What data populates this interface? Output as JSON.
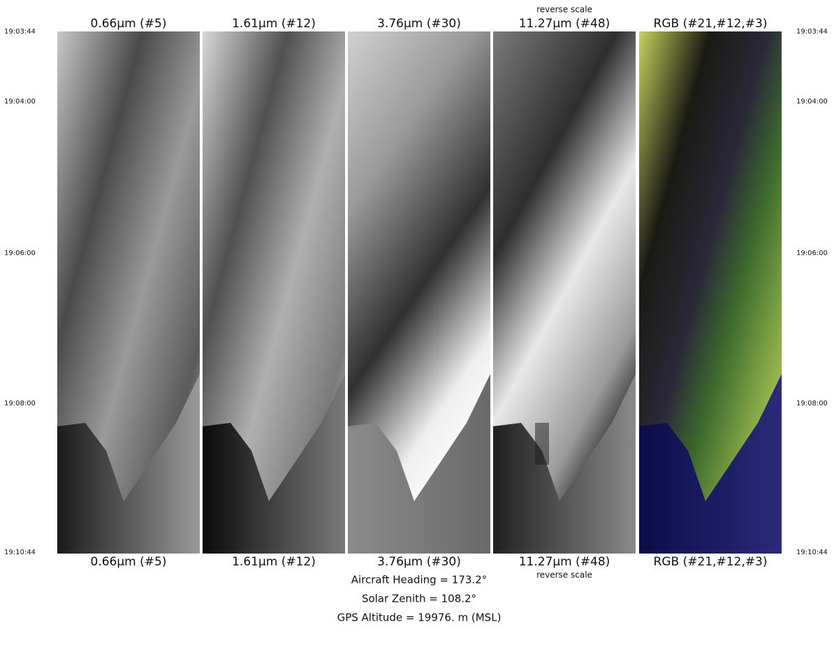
{
  "panels": [
    {
      "label": "0.66μm (#5)"
    },
    {
      "label": "1.61μm (#12)"
    },
    {
      "label": "3.76μm (#30)"
    },
    {
      "label": "11.27μm (#48)",
      "note": "reverse scale"
    },
    {
      "label": "RGB (#21,#12,#3)"
    }
  ],
  "time_labels": [
    "19:03:44",
    "19:04:00",
    "19:06:00",
    "19:08:00",
    "19:10:44"
  ],
  "footer": [
    "Aircraft Heading =  173.2°",
    "Solar Zenith =  108.2°",
    "GPS Altitude =  19976. m (MSL)"
  ]
}
